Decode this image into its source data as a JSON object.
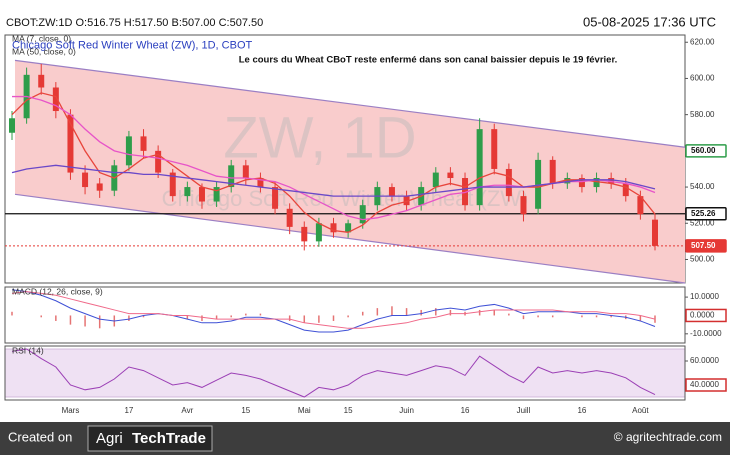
{
  "header": {
    "symbol_info": "CBOT:ZW:1D O:516.75 H:517.50 B:507.00 C:507.50",
    "timestamp": "05-08-2025 17:36 UTC"
  },
  "footer": {
    "created_on": "Created on",
    "logo_left": "Agri",
    "logo_right": "TechTrade",
    "website": "© agritechtrade.com"
  },
  "chart_data": [
    {
      "type": "candlestick",
      "legend_items": [
        "MA (7, close, 0)",
        "Chicago Soft Red Winter Wheat (ZW), 1D, CBOT",
        "MA (50, close, 0)"
      ],
      "watermark": "ZW, 1D",
      "watermark_subtitle": "Chicago Soft Red Winter Wheat (ZW)",
      "annotation": "Le cours du Wheat CBoT reste enfermé dans son canal baissier depuis le 19 février.",
      "categories": [
        null,
        null,
        null,
        null,
        "Mars",
        null,
        null,
        null,
        "17",
        null,
        null,
        null,
        "Avr",
        null,
        null,
        null,
        "15",
        null,
        null,
        null,
        "Mai",
        null,
        null,
        "15",
        null,
        null,
        null,
        "Juin",
        null,
        null,
        null,
        "16",
        null,
        null,
        null,
        "Juill",
        null,
        null,
        null,
        "16",
        null,
        null,
        null,
        "Août",
        null
      ],
      "open": [
        570,
        578,
        602,
        595,
        580,
        548,
        542,
        538,
        552,
        568,
        560,
        548,
        535,
        540,
        532,
        540,
        552,
        545,
        540,
        528,
        518,
        510,
        520,
        515,
        520,
        530,
        540,
        535,
        530,
        540,
        548,
        545,
        530,
        572,
        550,
        535,
        528,
        555,
        542,
        545,
        540,
        545,
        542,
        535,
        522
      ],
      "high": [
        582,
        606,
        608,
        598,
        583,
        552,
        545,
        555,
        571,
        572,
        563,
        550,
        543,
        542,
        543,
        555,
        555,
        548,
        543,
        531,
        521,
        523,
        523,
        522,
        533,
        543,
        542,
        538,
        543,
        551,
        551,
        548,
        578,
        575,
        553,
        538,
        559,
        557,
        548,
        547,
        548,
        548,
        545,
        538,
        525
      ],
      "low": [
        566,
        575,
        591,
        578,
        544,
        536,
        534,
        535,
        549,
        556,
        545,
        532,
        532,
        528,
        529,
        537,
        541,
        537,
        525,
        514,
        505,
        507,
        512,
        512,
        517,
        527,
        532,
        527,
        527,
        537,
        541,
        527,
        527,
        547,
        532,
        521,
        525,
        539,
        539,
        537,
        537,
        539,
        532,
        522,
        505
      ],
      "close": [
        578,
        602,
        595,
        582,
        548,
        540,
        538,
        552,
        568,
        560,
        548,
        535,
        540,
        532,
        540,
        552,
        545,
        540,
        528,
        518,
        510,
        520,
        515,
        520,
        530,
        540,
        535,
        530,
        540,
        548,
        545,
        530,
        572,
        550,
        535,
        525,
        555,
        542,
        545,
        540,
        545,
        542,
        535,
        525,
        507.5
      ],
      "up_color": "#2e9d4a",
      "down_color": "#e53935",
      "series": [
        {
          "color": "#e8453c",
          "values": [
            580,
            588,
            592,
            590,
            575,
            560,
            548,
            545,
            550,
            556,
            558,
            552,
            546,
            540,
            538,
            541,
            544,
            545,
            542,
            535,
            526,
            520,
            516,
            515,
            519,
            526,
            530,
            532,
            535,
            540,
            542,
            540,
            545,
            548,
            546,
            540,
            540,
            542,
            544,
            544,
            543,
            542,
            540,
            535,
            525
          ]
        },
        {
          "color": "#e754c8",
          "values": [
            590,
            590,
            588,
            585,
            580,
            572,
            565,
            560,
            558,
            557,
            556,
            554,
            552,
            549,
            546,
            545,
            545,
            544,
            543,
            540,
            536,
            532,
            528,
            524,
            522,
            523,
            525,
            527,
            530,
            533,
            536,
            537,
            540,
            541,
            541,
            540,
            541,
            542,
            543,
            543,
            544,
            543,
            542,
            540,
            537
          ]
        },
        {
          "color": "#6a48c8",
          "values": [
            548,
            550,
            551,
            552,
            551,
            550,
            549,
            548,
            548,
            547,
            547,
            546,
            545,
            544,
            543,
            542,
            541,
            540,
            539,
            538,
            537,
            536,
            535,
            535,
            535,
            535,
            535,
            535,
            536,
            537,
            538,
            539,
            540,
            540,
            540,
            540,
            541,
            542,
            543,
            544,
            544,
            544,
            543,
            541,
            539
          ]
        }
      ],
      "channel": {
        "upper": [
          610,
          562
        ],
        "lower": [
          536,
          487
        ],
        "fill": "#f9cccc",
        "color": "#9b7fc4"
      },
      "levels": [
        {
          "value": 560,
          "label": "560.00",
          "color": "#2e9d4a",
          "style": "none"
        },
        {
          "value": 525.26,
          "label": "525.26",
          "color": "#111111",
          "style": "solid"
        },
        {
          "value": 507.5,
          "label": "507.50",
          "color": "#e53935",
          "style": "dotted"
        }
      ],
      "ylim": [
        487,
        624
      ],
      "yticks": [
        {
          "value": 500,
          "label": "500.00"
        },
        {
          "value": 520,
          "label": "520.00"
        },
        {
          "value": 540,
          "label": "540.00"
        },
        {
          "value": 560,
          "label": "560.00"
        },
        {
          "value": 580,
          "label": "580.00"
        },
        {
          "value": 600,
          "label": "600.00"
        },
        {
          "value": 620,
          "label": "620.00"
        }
      ]
    },
    {
      "type": "macd",
      "title": "MACD (12, 26, close, 9)",
      "series": [
        {
          "color": "#3f51d6",
          "values": [
            14,
            13,
            11,
            8,
            4,
            1,
            -2,
            -3,
            -2,
            0,
            1,
            0,
            -2,
            -4,
            -4,
            -3,
            -1,
            -1,
            -2,
            -5,
            -8,
            -9,
            -9,
            -8,
            -5,
            -2,
            0,
            0,
            1,
            3,
            4,
            3,
            5,
            6,
            4,
            1,
            2,
            2,
            2,
            1,
            1,
            0,
            -1,
            -3,
            -6
          ]
        },
        {
          "color": "#f06a8a",
          "values": [
            12,
            13,
            12,
            11,
            9,
            7,
            5,
            3,
            1,
            1,
            1,
            0,
            0,
            -1,
            -2,
            -2,
            -2,
            -2,
            -2,
            -2,
            -4,
            -5,
            -6,
            -7,
            -7,
            -6,
            -5,
            -4,
            -2,
            -1,
            1,
            1,
            2,
            3,
            3,
            3,
            3,
            3,
            2,
            2,
            2,
            1,
            1,
            0,
            -2
          ]
        }
      ],
      "histogram": {
        "color": "#e57373",
        "values": [
          2,
          0,
          -1,
          -3,
          -5,
          -6,
          -7,
          -6,
          -3,
          -1,
          0,
          0,
          -2,
          -3,
          -2,
          -1,
          1,
          1,
          0,
          -3,
          -4,
          -4,
          -3,
          -1,
          2,
          4,
          5,
          4,
          3,
          4,
          3,
          2,
          3,
          3,
          1,
          -2,
          -1,
          -1,
          0,
          -1,
          -1,
          -1,
          -2,
          -3,
          -4
        ]
      },
      "ylim": [
        -15,
        15.5
      ],
      "yticks": [
        {
          "value": -10,
          "label": "-10.0000"
        },
        {
          "value": 0,
          "label": "0.0000",
          "highlight": "#d32f2f"
        },
        {
          "value": 10,
          "label": "10.0000"
        }
      ]
    },
    {
      "type": "rsi",
      "title": "RSI (14)",
      "series": [
        {
          "color": "#9b3fb5",
          "values": [
            68,
            70,
            62,
            55,
            40,
            36,
            38,
            45,
            55,
            52,
            46,
            40,
            42,
            38,
            44,
            50,
            48,
            45,
            40,
            35,
            30,
            38,
            36,
            40,
            48,
            52,
            50,
            48,
            52,
            56,
            54,
            48,
            64,
            56,
            48,
            42,
            55,
            50,
            52,
            50,
            52,
            50,
            46,
            38,
            32
          ]
        }
      ],
      "band": [
        30,
        70
      ],
      "band_color": "#efe1f3",
      "ylim": [
        27.5,
        72.5
      ],
      "yticks": [
        {
          "value": 40,
          "label": "40.0000",
          "highlight": "#d32f2f"
        },
        {
          "value": 60,
          "label": "60.0000"
        }
      ]
    }
  ]
}
